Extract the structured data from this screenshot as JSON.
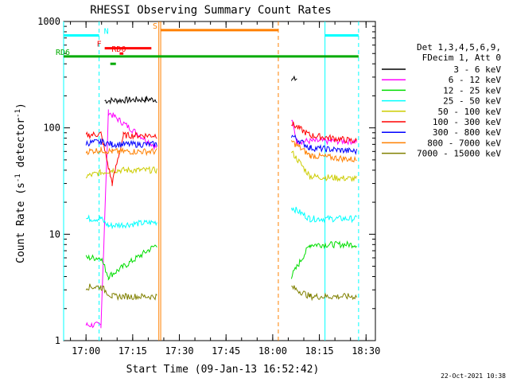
{
  "chart_data": {
    "type": "line",
    "title": "RHESSI Observing Summary Count Rates",
    "xlabel": "Start Time (09-Jan-13 16:52:42)",
    "ylabel_main": "Count Rate (s",
    "ylabel_sup1": "-1",
    "ylabel_mid": " detector",
    "ylabel_sup2": "-1",
    "ylabel_end": ")",
    "y_scale": "log",
    "ylim": [
      1,
      1000
    ],
    "xlim_minutes": [
      16.88,
      18.55
    ],
    "x_ticks": [
      {
        "label": "17:00",
        "value": 17.0
      },
      {
        "label": "17:15",
        "value": 17.25
      },
      {
        "label": "17:30",
        "value": 17.5
      },
      {
        "label": "17:45",
        "value": 17.75
      },
      {
        "label": "18:00",
        "value": 18.0
      },
      {
        "label": "18:15",
        "value": 18.25
      },
      {
        "label": "18:30",
        "value": 18.5
      }
    ],
    "y_ticks": [
      {
        "label": "1",
        "value": 1
      },
      {
        "label": "10",
        "value": 10
      },
      {
        "label": "100",
        "value": 100
      },
      {
        "label": "1000",
        "value": 1000
      }
    ],
    "legend_header": [
      "Det 1,3,4,5,6,9,",
      "FDecim 1, Att 0"
    ],
    "legend_placement": "right",
    "series": [
      {
        "name": "3 - 6 keV",
        "color": "#000000",
        "segments": [
          [
            17.1,
            180,
            17.32,
            185,
            17.38,
            185
          ],
          [
            18.1,
            280,
            18.13,
            290
          ]
        ]
      },
      {
        "name": "6 - 12 keV",
        "color": "#ff00ff",
        "segments": [
          [
            17.0,
            1.4,
            17.08,
            1.4,
            17.12,
            140,
            17.38,
            65
          ],
          [
            18.1,
            120,
            18.13,
            75,
            18.45,
            75
          ]
        ]
      },
      {
        "name": "12 - 25 keV",
        "color": "#00dd00",
        "segments": [
          [
            17.0,
            6,
            17.08,
            6,
            17.12,
            4,
            17.38,
            8
          ],
          [
            18.1,
            4,
            18.2,
            8,
            18.45,
            8
          ]
        ]
      },
      {
        "name": "25 - 50 keV",
        "color": "#00ffff",
        "segments": [
          [
            17.0,
            14,
            17.08,
            14,
            17.12,
            12,
            17.38,
            13
          ],
          [
            18.1,
            18,
            18.2,
            14,
            18.45,
            14
          ]
        ]
      },
      {
        "name": "50 - 100 keV",
        "color": "#cccc00",
        "segments": [
          [
            17.0,
            35,
            17.08,
            38,
            17.14,
            40,
            17.38,
            40
          ],
          [
            18.1,
            60,
            18.2,
            35,
            18.45,
            33
          ]
        ]
      },
      {
        "name": "100 - 300 keV",
        "color": "#ff0000",
        "segments": [
          [
            17.0,
            85,
            17.08,
            88,
            17.14,
            30,
            17.2,
            85,
            17.38,
            85
          ],
          [
            18.1,
            110,
            18.2,
            85,
            18.45,
            75
          ]
        ]
      },
      {
        "name": "300 - 800 keV",
        "color": "#0000ff",
        "segments": [
          [
            17.0,
            72,
            17.08,
            74,
            17.14,
            70,
            17.38,
            70
          ],
          [
            18.1,
            85,
            18.2,
            65,
            18.45,
            60
          ]
        ]
      },
      {
        "name": "800 - 7000 keV",
        "color": "#ff8000",
        "segments": [
          [
            17.0,
            60,
            17.08,
            62,
            17.14,
            60,
            17.38,
            60
          ],
          [
            18.1,
            75,
            18.2,
            55,
            18.45,
            50
          ]
        ]
      },
      {
        "name": "7000 - 15000 keV",
        "color": "#808000",
        "segments": [
          [
            17.0,
            3.2,
            17.08,
            3.2,
            17.14,
            2.6,
            17.38,
            2.6
          ],
          [
            18.1,
            3.2,
            18.2,
            2.6,
            18.45,
            2.6
          ]
        ]
      }
    ],
    "flag_bars": [
      {
        "label": "N",
        "color": "#00ffff",
        "level": 740,
        "segments": [
          [
            16.88,
            17.07
          ],
          [
            18.28,
            18.46
          ]
        ]
      },
      {
        "label": "F",
        "color": "#ff0000",
        "level": 560,
        "segments": [
          [
            17.1,
            17.35
          ]
        ]
      },
      {
        "label": "S",
        "color": "#ff8000",
        "level": 830,
        "segments": [
          [
            17.4,
            18.03
          ]
        ]
      },
      {
        "label": "RD0",
        "color": "#ff0000",
        "level": 500,
        "segments": [
          [
            17.18,
            17.2
          ]
        ]
      },
      {
        "label": "RD6",
        "color": "#00aa00",
        "level": 470,
        "segments": [
          [
            16.88,
            18.46
          ]
        ]
      },
      {
        "label": "",
        "color": "#00aa00",
        "level": 400,
        "segments": [
          [
            17.13,
            17.16
          ]
        ]
      }
    ],
    "vlines": [
      {
        "x": 16.88,
        "color": "#00ffff",
        "style": "solid"
      },
      {
        "x": 17.07,
        "color": "#00ffff",
        "style": "dashed"
      },
      {
        "x": 17.39,
        "color": "#ff8000",
        "style": "solid"
      },
      {
        "x": 17.4,
        "color": "#ff8000",
        "style": "solid"
      },
      {
        "x": 18.03,
        "color": "#ff8000",
        "style": "dashed"
      },
      {
        "x": 18.28,
        "color": "#00ffff",
        "style": "solid"
      },
      {
        "x": 18.46,
        "color": "#00ffff",
        "style": "dashed"
      }
    ]
  },
  "footer": {
    "timestamp": "22-Oct-2021 10:38"
  }
}
